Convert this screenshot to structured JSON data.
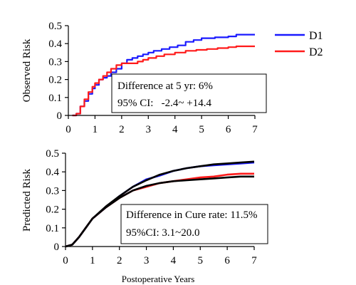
{
  "chart_data": [
    {
      "type": "line",
      "title": "",
      "xlabel": "",
      "ylabel": "Observed Risk",
      "xlim": [
        0,
        7
      ],
      "ylim": [
        0,
        0.5
      ],
      "x_ticks": [
        "0",
        "1",
        "2",
        "3",
        "4",
        "5",
        "6",
        "7"
      ],
      "y_ticks": [
        "0",
        "0.1",
        "0.2",
        "0.3",
        "0.4",
        "0.5"
      ],
      "grid": false,
      "legend_position": "top-right, outside plot",
      "series": [
        {
          "name": "D1",
          "color": "#1a1aff",
          "step": true,
          "points": [
            [
              0.15,
              0
            ],
            [
              0.3,
              0.01
            ],
            [
              0.45,
              0.05
            ],
            [
              0.6,
              0.08
            ],
            [
              0.75,
              0.12
            ],
            [
              0.9,
              0.15
            ],
            [
              1.0,
              0.17
            ],
            [
              1.15,
              0.2
            ],
            [
              1.3,
              0.21
            ],
            [
              1.45,
              0.22
            ],
            [
              1.6,
              0.24
            ],
            [
              1.8,
              0.26
            ],
            [
              2.0,
              0.29
            ],
            [
              2.2,
              0.31
            ],
            [
              2.4,
              0.32
            ],
            [
              2.6,
              0.33
            ],
            [
              2.8,
              0.34
            ],
            [
              3.0,
              0.35
            ],
            [
              3.2,
              0.36
            ],
            [
              3.5,
              0.37
            ],
            [
              3.8,
              0.38
            ],
            [
              4.1,
              0.39
            ],
            [
              4.4,
              0.41
            ],
            [
              4.7,
              0.42
            ],
            [
              5.0,
              0.43
            ],
            [
              5.5,
              0.435
            ],
            [
              6.0,
              0.44
            ],
            [
              6.3,
              0.45
            ],
            [
              7.0,
              0.45
            ]
          ]
        },
        {
          "name": "D2",
          "color": "#ff1a1a",
          "step": true,
          "points": [
            [
              0.15,
              0
            ],
            [
              0.3,
              0.01
            ],
            [
              0.45,
              0.05
            ],
            [
              0.6,
              0.09
            ],
            [
              0.75,
              0.13
            ],
            [
              0.9,
              0.16
            ],
            [
              1.0,
              0.18
            ],
            [
              1.15,
              0.2
            ],
            [
              1.3,
              0.22
            ],
            [
              1.45,
              0.24
            ],
            [
              1.6,
              0.26
            ],
            [
              1.8,
              0.28
            ],
            [
              2.0,
              0.29
            ],
            [
              2.2,
              0.29
            ],
            [
              2.6,
              0.3
            ],
            [
              2.8,
              0.31
            ],
            [
              3.0,
              0.32
            ],
            [
              3.3,
              0.33
            ],
            [
              3.6,
              0.34
            ],
            [
              4.0,
              0.35
            ],
            [
              4.4,
              0.36
            ],
            [
              4.8,
              0.365
            ],
            [
              5.2,
              0.37
            ],
            [
              5.6,
              0.375
            ],
            [
              6.0,
              0.38
            ],
            [
              6.3,
              0.385
            ],
            [
              7.0,
              0.385
            ]
          ]
        }
      ],
      "annotation": {
        "lines": [
          "Difference at 5 yr: 6%",
          "95% CI:   -2.4~ +14.4"
        ]
      }
    },
    {
      "type": "line",
      "title": "",
      "xlabel": "Postoperative Years",
      "ylabel": "Predicted Risk",
      "xlim": [
        0,
        7
      ],
      "ylim": [
        0,
        0.5
      ],
      "x_ticks": [
        "0",
        "1",
        "2",
        "3",
        "4",
        "5",
        "6",
        "7"
      ],
      "y_ticks": [
        "0",
        "0.1",
        "0.2",
        "0.3",
        "0.4",
        "0.5"
      ],
      "grid": false,
      "series": [
        {
          "color": "#1a1aff",
          "step": false,
          "points": [
            [
              0,
              0
            ],
            [
              0.25,
              0.01
            ],
            [
              0.5,
              0.05
            ],
            [
              0.75,
              0.1
            ],
            [
              1.0,
              0.15
            ],
            [
              1.5,
              0.21
            ],
            [
              2.0,
              0.27
            ],
            [
              2.5,
              0.32
            ],
            [
              3.0,
              0.36
            ],
            [
              3.5,
              0.38
            ],
            [
              4.0,
              0.405
            ],
            [
              4.5,
              0.42
            ],
            [
              5.0,
              0.43
            ],
            [
              5.5,
              0.435
            ],
            [
              6.0,
              0.44
            ],
            [
              6.5,
              0.445
            ],
            [
              7.0,
              0.45
            ]
          ]
        },
        {
          "color": "#ff1a1a",
          "step": false,
          "points": [
            [
              0,
              0
            ],
            [
              0.25,
              0.01
            ],
            [
              0.5,
              0.05
            ],
            [
              0.75,
              0.1
            ],
            [
              1.0,
              0.15
            ],
            [
              1.5,
              0.21
            ],
            [
              2.0,
              0.26
            ],
            [
              2.5,
              0.3
            ],
            [
              3.0,
              0.32
            ],
            [
              3.5,
              0.34
            ],
            [
              4.0,
              0.35
            ],
            [
              4.5,
              0.36
            ],
            [
              5.0,
              0.37
            ],
            [
              5.5,
              0.375
            ],
            [
              6.0,
              0.385
            ],
            [
              6.5,
              0.39
            ],
            [
              7.0,
              0.39
            ]
          ]
        },
        {
          "color": "#000000",
          "step": false,
          "points": [
            [
              0,
              0
            ],
            [
              0.25,
              0.01
            ],
            [
              0.5,
              0.05
            ],
            [
              0.75,
              0.1
            ],
            [
              1.0,
              0.15
            ],
            [
              1.5,
              0.215
            ],
            [
              2.0,
              0.27
            ],
            [
              2.5,
              0.32
            ],
            [
              3.0,
              0.355
            ],
            [
              3.5,
              0.385
            ],
            [
              4.0,
              0.405
            ],
            [
              4.5,
              0.42
            ],
            [
              5.0,
              0.43
            ],
            [
              5.5,
              0.44
            ],
            [
              6.0,
              0.445
            ],
            [
              6.5,
              0.45
            ],
            [
              7.0,
              0.455
            ]
          ]
        },
        {
          "color": "#000000",
          "step": false,
          "points": [
            [
              0,
              0
            ],
            [
              0.25,
              0.01
            ],
            [
              0.5,
              0.05
            ],
            [
              0.75,
              0.1
            ],
            [
              1.0,
              0.15
            ],
            [
              1.5,
              0.21
            ],
            [
              2.0,
              0.26
            ],
            [
              2.5,
              0.3
            ],
            [
              3.0,
              0.325
            ],
            [
              3.5,
              0.34
            ],
            [
              4.0,
              0.35
            ],
            [
              4.5,
              0.355
            ],
            [
              5.0,
              0.36
            ],
            [
              5.5,
              0.365
            ],
            [
              6.0,
              0.37
            ],
            [
              6.5,
              0.375
            ],
            [
              7.0,
              0.375
            ]
          ]
        }
      ],
      "annotation": {
        "lines": [
          "Difference in Cure rate: 11.5%",
          "95%CI: 3.1~20.0"
        ]
      }
    }
  ]
}
